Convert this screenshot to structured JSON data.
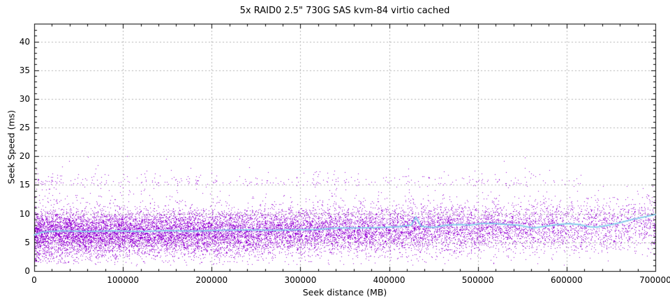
{
  "chart_data": {
    "type": "scatter",
    "title": "5x RAID0 2.5\" 730G SAS kvm-84 virtio cached",
    "xlabel": "Seek distance (MB)",
    "ylabel": "Seek Speed (ms)",
    "xlim": [
      0,
      700000
    ],
    "ylim": [
      0,
      43.1
    ],
    "xticks": [
      {
        "v": 0,
        "label": "0"
      },
      {
        "v": 100000,
        "label": "100000"
      },
      {
        "v": 200000,
        "label": "200000"
      },
      {
        "v": 300000,
        "label": "300000"
      },
      {
        "v": 400000,
        "label": "400000"
      },
      {
        "v": 500000,
        "label": "500000"
      },
      {
        "v": 600000,
        "label": "600000"
      },
      {
        "v": 700000,
        "label": "700000"
      }
    ],
    "yticks": [
      {
        "v": 0,
        "label": "0"
      },
      {
        "v": 5,
        "label": "5"
      },
      {
        "v": 10,
        "label": "10"
      },
      {
        "v": 15,
        "label": "15"
      },
      {
        "v": 20,
        "label": "20"
      },
      {
        "v": 25,
        "label": "25"
      },
      {
        "v": 30,
        "label": "30"
      },
      {
        "v": 35,
        "label": "35"
      },
      {
        "v": 40,
        "label": "40"
      }
    ],
    "x_minor_step": 20000,
    "y_minor_step": 1,
    "grid": {
      "on": true,
      "at": "major-ticks",
      "style": "dashed"
    },
    "legend": "none",
    "colors": {
      "points": "#9400D3",
      "trend_line": "#87CEEB",
      "grid": "#b0b0b0",
      "axis": "#000000",
      "background": "#ffffff"
    },
    "scatter": {
      "description": "~16000 individual seek samples drawn as 1px dots; dense purple band 3-11 ms centered near 7 ms, densest at small seek distances and thinning toward 700000 MB; sparse secondary band 15-17 ms over 0-600000 MB; sparse points 1-4 ms near origin; few outliers up to ~20 ms",
      "seed": 1337,
      "groups": [
        {
          "name": "core-band",
          "count": 15500,
          "x": {
            "dist": "linear-down",
            "min": 0,
            "max": 700000,
            "end_ratio": 0.22
          },
          "y": {
            "dist": "normal",
            "base_mean": 6.6,
            "mean_slope": 0.5,
            "mean_quad": 0.9,
            "sd": 1.85,
            "sd_slope": 0.35,
            "min": 0.9,
            "max": 13.2
          }
        },
        {
          "name": "upper-band-15-17ms",
          "count": 300,
          "x": {
            "dist": "power",
            "power": 1.3,
            "min": 0,
            "max": 620000
          },
          "y": {
            "dist": "half-normal-up",
            "base": 15.1,
            "sd": 1.0,
            "max": 18.2
          }
        },
        {
          "name": "mid-sparse-12-15ms",
          "count": 170,
          "x": {
            "dist": "power",
            "power": 1.4,
            "min": 0,
            "max": 700000
          },
          "y": {
            "dist": "uniform",
            "min": 11.8,
            "max": 15.0
          }
        },
        {
          "name": "low-left-sparse",
          "count": 280,
          "x": {
            "dist": "power",
            "power": 2.0,
            "min": 0,
            "max": 260000
          },
          "y": {
            "dist": "uniform",
            "min": 1.4,
            "max": 4.6
          }
        },
        {
          "name": "high-outliers",
          "count": 14,
          "x": {
            "dist": "uniform",
            "min": 30000,
            "max": 660000
          },
          "y": {
            "dist": "uniform",
            "min": 17.3,
            "max": 20.2
          }
        }
      ]
    },
    "trend": {
      "name": "moving-average",
      "points": [
        [
          0,
          6.3
        ],
        [
          10000,
          6.8
        ],
        [
          30000,
          7.0
        ],
        [
          60000,
          6.9
        ],
        [
          90000,
          7.0
        ],
        [
          120000,
          6.9
        ],
        [
          150000,
          7.05
        ],
        [
          180000,
          6.95
        ],
        [
          210000,
          7.1
        ],
        [
          240000,
          7.15
        ],
        [
          270000,
          7.1
        ],
        [
          300000,
          7.2
        ],
        [
          320000,
          7.25
        ],
        [
          341000,
          7.5
        ],
        [
          365000,
          7.5
        ],
        [
          390000,
          7.6
        ],
        [
          410000,
          7.7
        ],
        [
          425000,
          8.0
        ],
        [
          430000,
          9.4
        ],
        [
          436000,
          7.8
        ],
        [
          450000,
          7.6
        ],
        [
          465000,
          8.0
        ],
        [
          478000,
          8.1
        ],
        [
          492000,
          8.0
        ],
        [
          505000,
          8.3
        ],
        [
          518000,
          8.3
        ],
        [
          532000,
          8.1
        ],
        [
          546000,
          8.0
        ],
        [
          562000,
          7.5
        ],
        [
          576000,
          7.8
        ],
        [
          590000,
          8.1
        ],
        [
          602000,
          8.25
        ],
        [
          614000,
          8.1
        ],
        [
          626000,
          7.7
        ],
        [
          634000,
          7.65
        ],
        [
          648000,
          8.0
        ],
        [
          662000,
          8.5
        ],
        [
          674000,
          9.0
        ],
        [
          687000,
          9.4
        ],
        [
          700000,
          9.85
        ]
      ]
    }
  }
}
